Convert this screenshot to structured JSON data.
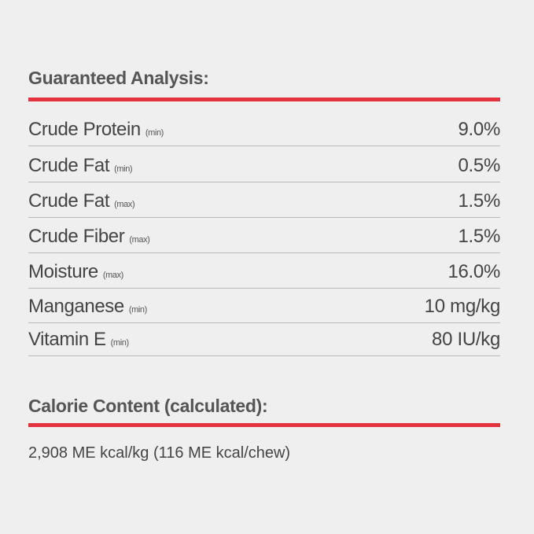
{
  "guaranteed_analysis": {
    "title": "Guaranteed Analysis:",
    "rows": [
      {
        "name": "Crude Protein",
        "qualifier": "(min)",
        "value": "9.0%"
      },
      {
        "name": "Crude Fat",
        "qualifier": "(min)",
        "value": "0.5%"
      },
      {
        "name": "Crude Fat",
        "qualifier": "(max)",
        "value": "1.5%"
      },
      {
        "name": "Crude Fiber",
        "qualifier": "(max)",
        "value": "1.5%"
      },
      {
        "name": "Moisture",
        "qualifier": "(max)",
        "value": "16.0%"
      },
      {
        "name": "Manganese",
        "qualifier": "(min)",
        "value": "10 mg/kg"
      },
      {
        "name": "Vitamin E",
        "qualifier": "(min)",
        "value": "80 IU/kg"
      }
    ]
  },
  "calorie_content": {
    "title": "Calorie Content (calculated):",
    "text": "2,908 ME kcal/kg (116 ME kcal/chew)"
  }
}
